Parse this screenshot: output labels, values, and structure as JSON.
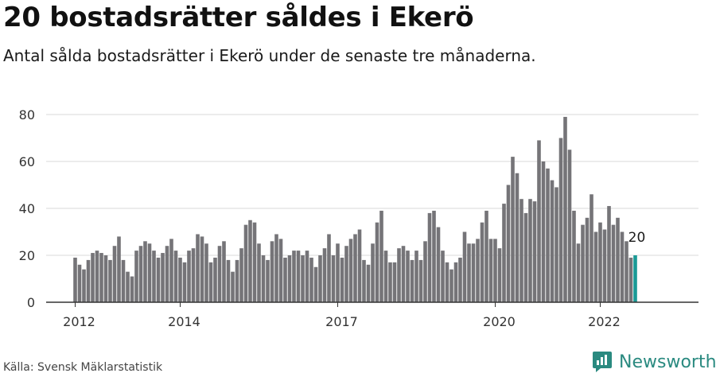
{
  "header": {
    "title": "20 bostadsrätter såldes i Ekerö",
    "subtitle": "Antal sålda bostadsrätter i Ekerö under de senaste tre månaderna."
  },
  "footer": {
    "source": "Källa: Svensk Mäklarstatistik",
    "brand": "Newsworthy"
  },
  "colors": {
    "bar": "#757478",
    "highlight": "#1a9a96",
    "grid": "#d8d8d8",
    "axis": "#333333",
    "brand": "#2a8a80"
  },
  "chart_data": {
    "type": "bar",
    "title": "20 bostadsrätter såldes i Ekerö",
    "xlabel": "",
    "ylabel": "",
    "ylim": [
      0,
      80
    ],
    "yticks": [
      0,
      20,
      40,
      60,
      80
    ],
    "xtick_labels": [
      "2012",
      "2014",
      "2017",
      "2020",
      "2022"
    ],
    "xtick_indices": [
      0,
      24,
      60,
      96,
      120
    ],
    "period": "monthly, January 2012 to September 2022",
    "highlight_index": 128,
    "highlight_label": "20",
    "values": [
      19,
      16,
      14,
      18,
      21,
      22,
      21,
      20,
      18,
      24,
      28,
      18,
      13,
      11,
      22,
      24,
      26,
      25,
      22,
      19,
      21,
      24,
      27,
      22,
      19,
      17,
      22,
      23,
      29,
      28,
      25,
      17,
      19,
      24,
      26,
      18,
      13,
      18,
      23,
      33,
      35,
      34,
      25,
      20,
      18,
      26,
      29,
      27,
      19,
      20,
      22,
      22,
      20,
      22,
      19,
      15,
      20,
      23,
      29,
      20,
      25,
      19,
      24,
      27,
      29,
      31,
      18,
      16,
      25,
      34,
      39,
      22,
      17,
      17,
      23,
      24,
      22,
      18,
      22,
      18,
      26,
      38,
      39,
      32,
      22,
      17,
      14,
      17,
      19,
      30,
      25,
      25,
      27,
      34,
      39,
      27,
      27,
      23,
      42,
      50,
      62,
      55,
      44,
      38,
      44,
      43,
      69,
      60,
      57,
      52,
      49,
      70,
      79,
      65,
      39,
      25,
      33,
      36,
      46,
      30,
      34,
      31,
      41,
      33,
      36,
      30,
      26,
      19,
      20
    ]
  }
}
